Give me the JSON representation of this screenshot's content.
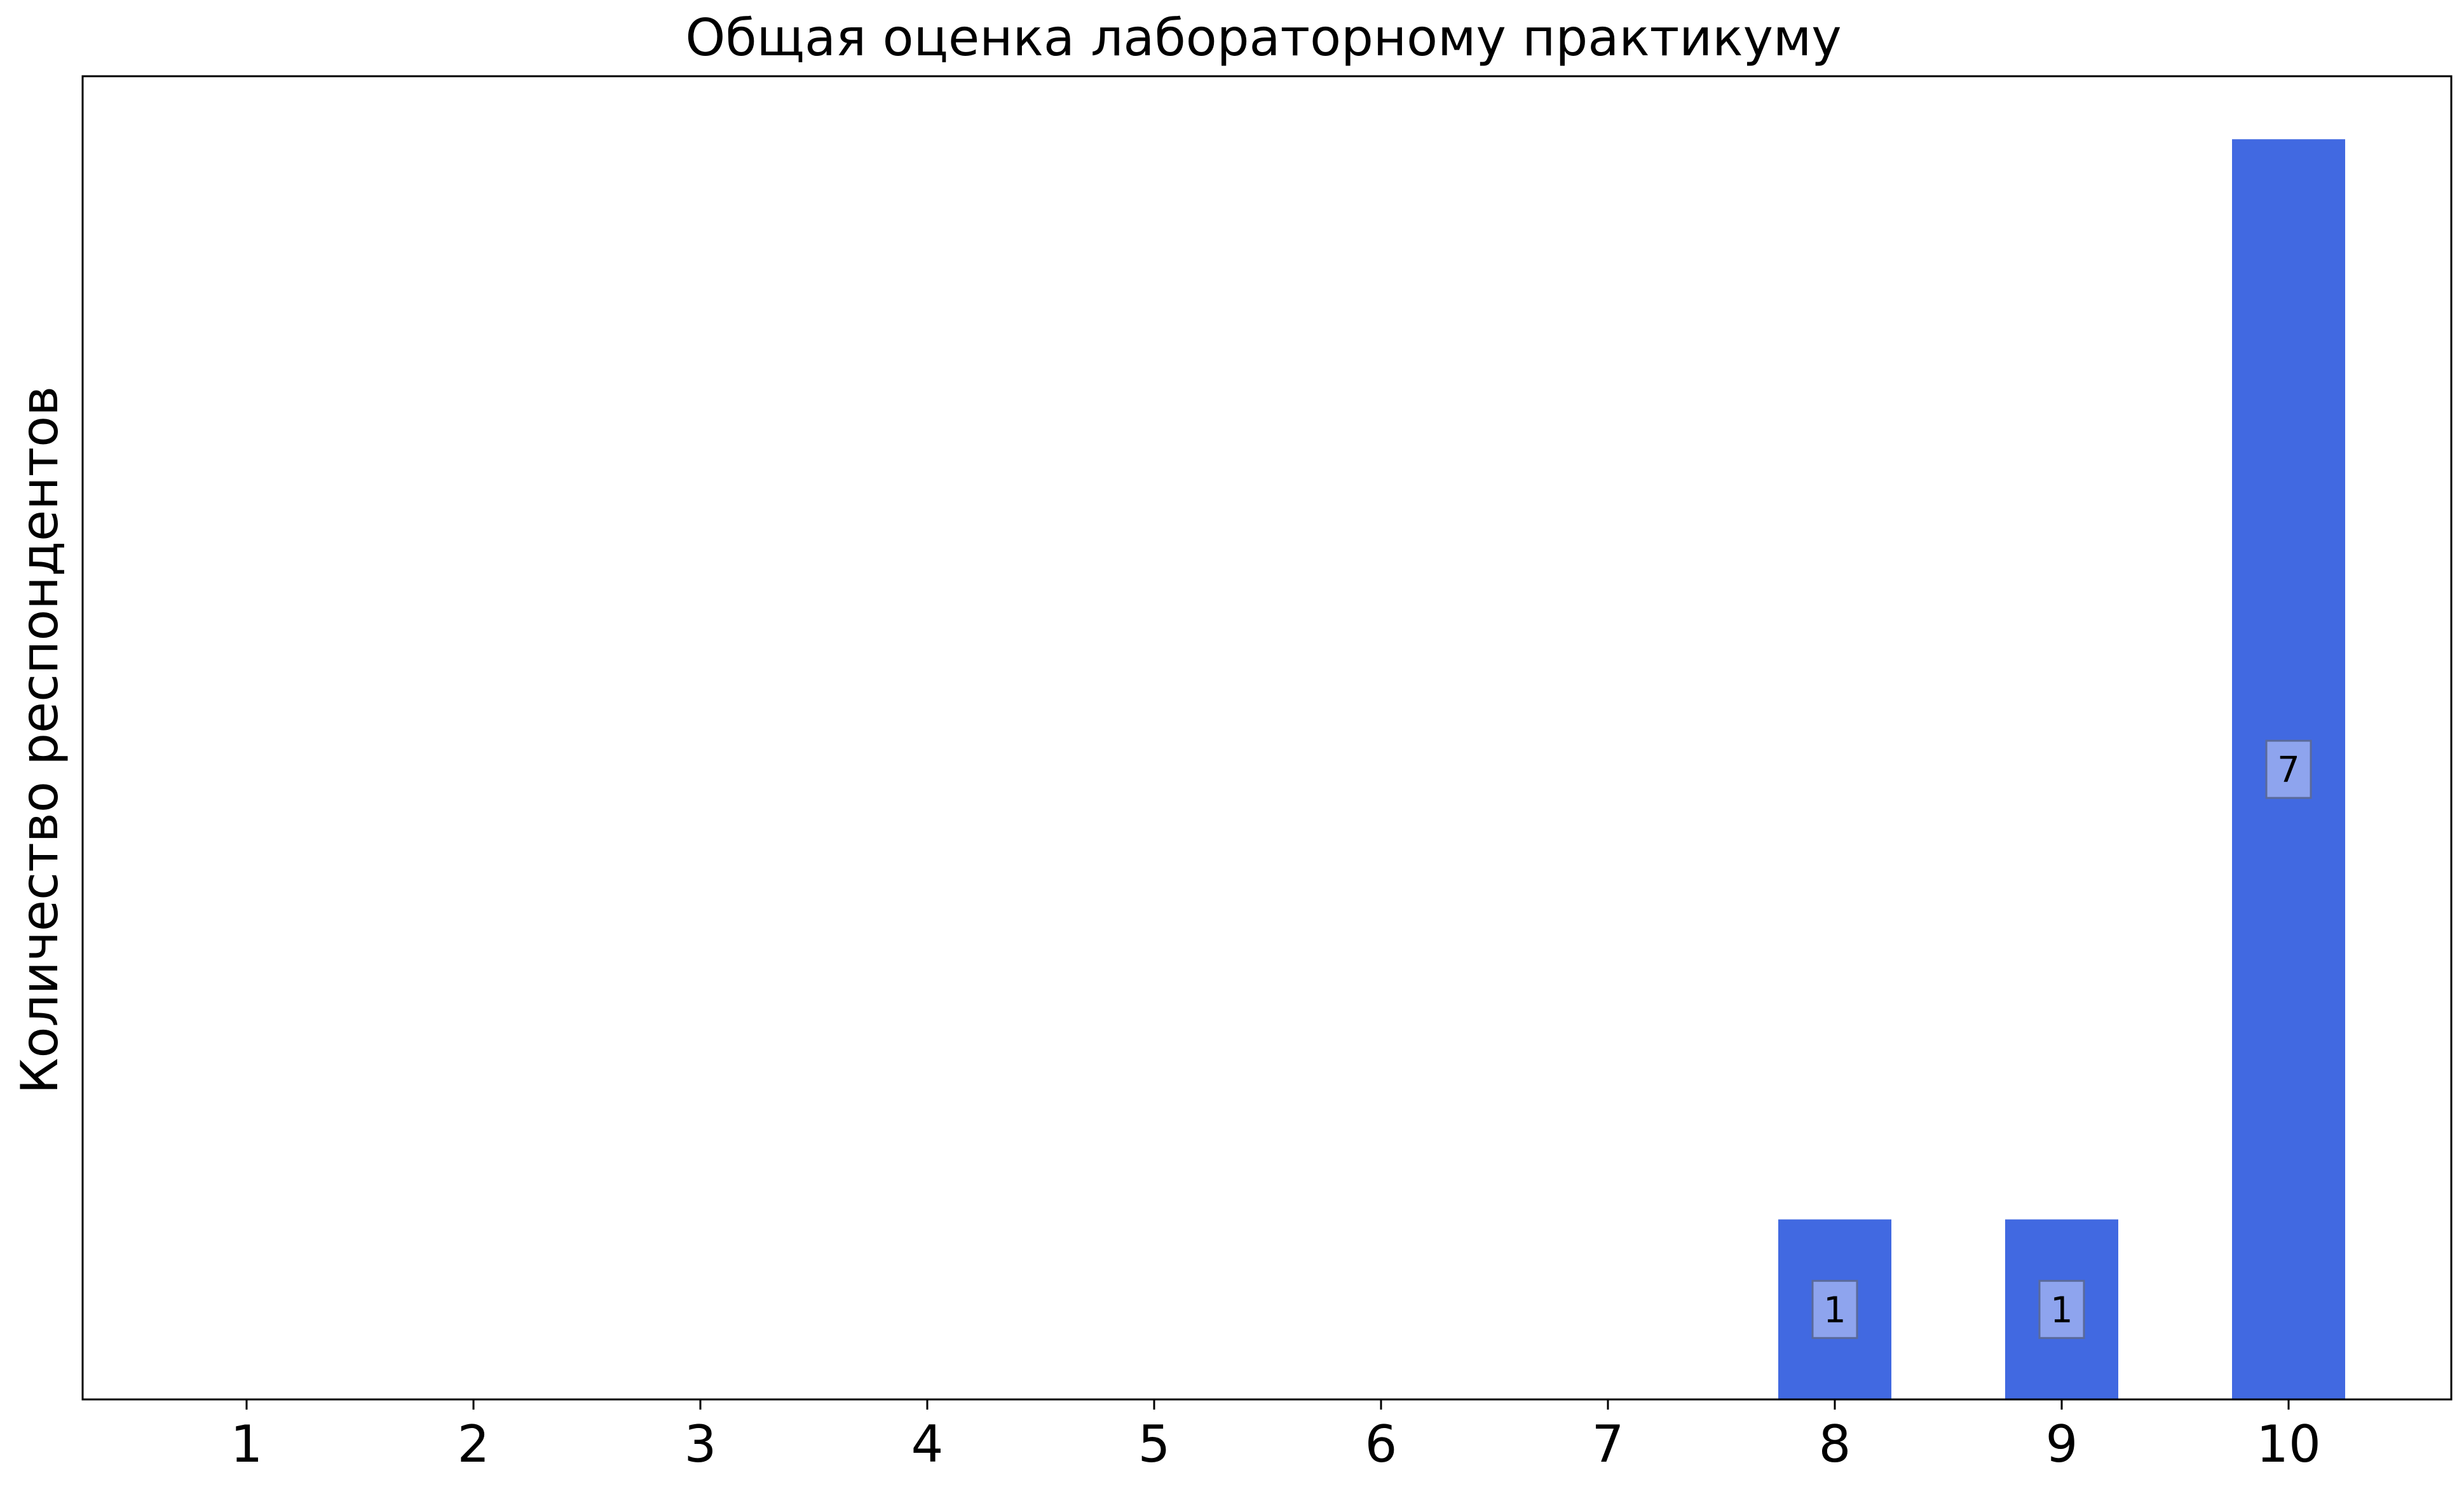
{
  "chart_data": {
    "type": "bar",
    "title": "Общая оценка лабораторному практикуму",
    "xlabel": "",
    "ylabel": "Количество респондентов",
    "categories": [
      "1",
      "2",
      "3",
      "4",
      "5",
      "6",
      "7",
      "8",
      "9",
      "10"
    ],
    "values": [
      0,
      0,
      0,
      0,
      0,
      0,
      0,
      1,
      1,
      7
    ],
    "data_labels": [
      "",
      "",
      "",
      "",
      "",
      "",
      "",
      "1",
      "1",
      "7"
    ],
    "ylim": [
      0,
      7.35
    ],
    "y_ticks_shown": false,
    "grid": false,
    "legend": "none",
    "colors": {
      "bar": "#4169e1",
      "label_box": "#8ea4ee",
      "label_box_border": "#5a6a9a",
      "axis": "#000000"
    }
  }
}
